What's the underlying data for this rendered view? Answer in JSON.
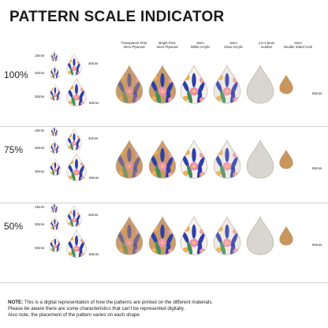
{
  "title": "PATTERN SCALE INDICATOR",
  "columns": [
    {
      "line1": "Transparent Print",
      "line2": "3mm Plywood"
    },
    {
      "line1": "Bright Print",
      "line2": "3mm Plywood"
    },
    {
      "line1": "3mm",
      "line2": "White Acrylic"
    },
    {
      "line1": "3mm",
      "line2": "Clear Acrylic"
    },
    {
      "line1": "1.6-1.8mm",
      "line2": "Leather"
    },
    {
      "line1": "3mm",
      "line2": "Double Sided Cork"
    }
  ],
  "sections": [
    {
      "percent": "100%",
      "s15": "15mm",
      "s20": "20mm",
      "s30": "30mm",
      "s40": "40mm",
      "s50": "50mm",
      "s60": "60mm"
    },
    {
      "percent": "75%",
      "s15": "15mm",
      "s20": "20mm",
      "s30": "30mm",
      "s40": "40mm",
      "s50": "50mm",
      "s60": "60mm"
    },
    {
      "percent": "50%",
      "s15": "15mm",
      "s20": "20mm",
      "s30": "30mm",
      "s40": "40mm",
      "s50": "50mm",
      "s60": "60mm"
    }
  ],
  "note": {
    "label": "NOTE:",
    "line1": " This is a digital representation of how the patterns are printed on the different materials.",
    "line2": "Please be aware there are some characteristics that can't be represented digitally.",
    "line3": "Also note, the placement of the pattern varies on each shape."
  },
  "colors": {
    "wood": "#c99a6a",
    "white": "#f6f1ec",
    "clear": "#efe9e4",
    "leather": "#d9d6d0",
    "cork": "#c8965c",
    "blue": "#2b3fa8",
    "pink": "#f08fb0",
    "orange": "#f2a53a",
    "green": "#3f8f5a"
  }
}
